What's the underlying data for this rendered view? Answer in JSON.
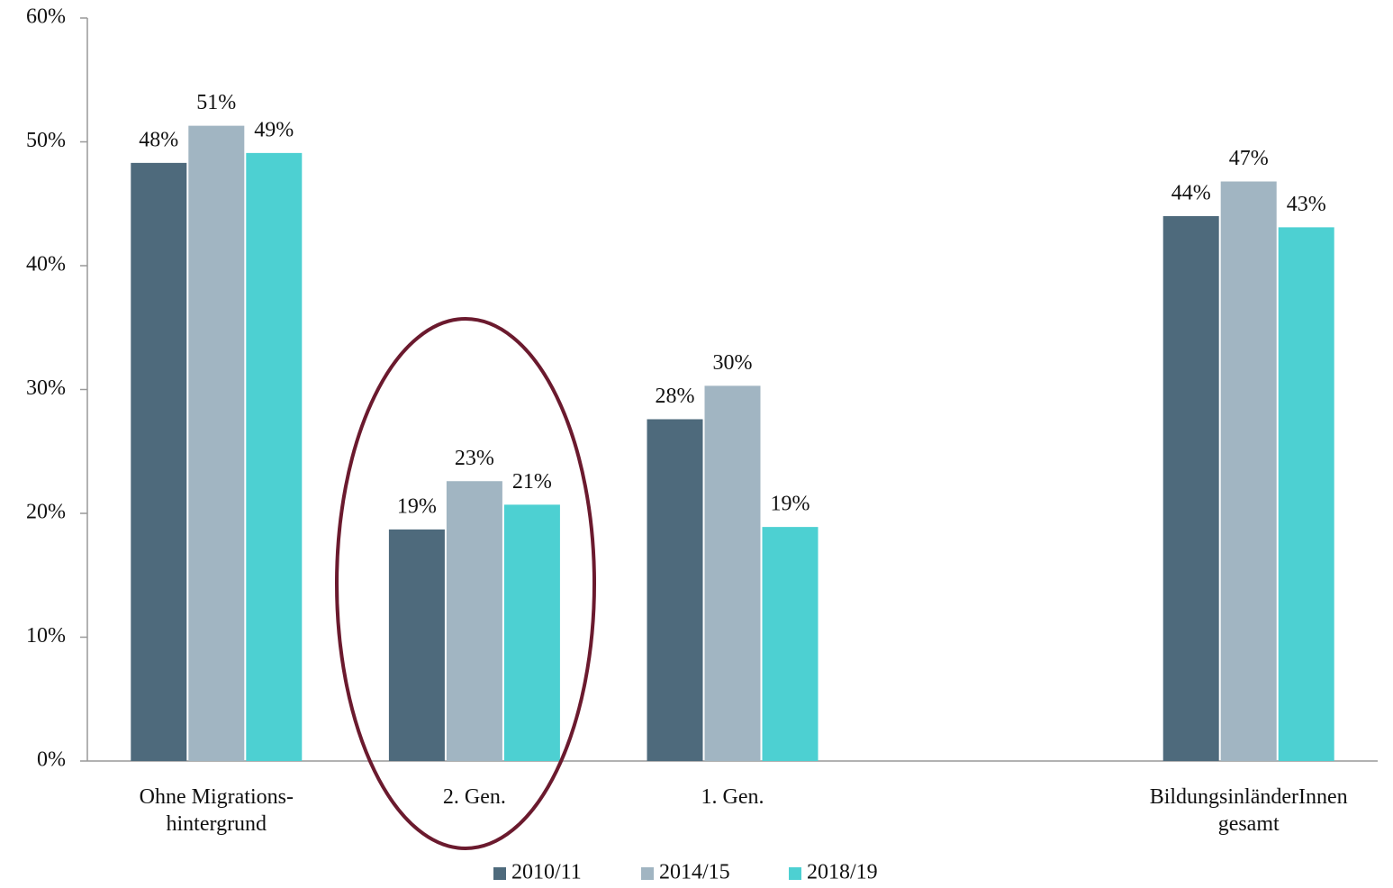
{
  "chart_data": {
    "type": "bar",
    "categories": [
      "Ohne Migrations-\nhintergrund",
      "2. Gen.",
      "1. Gen.",
      null,
      "BildungsinländerInnen\ngesamt"
    ],
    "series": [
      {
        "name": "2010/11",
        "color": "#4e6a7c",
        "values": [
          48.3,
          18.7,
          27.6,
          null,
          44.0
        ],
        "value_labels": [
          "48%",
          "19%",
          "28%",
          null,
          "44%"
        ]
      },
      {
        "name": "2014/15",
        "color": "#a1b5c2",
        "values": [
          51.3,
          22.6,
          30.3,
          null,
          46.8
        ],
        "value_labels": [
          "51%",
          "23%",
          "30%",
          null,
          "47%"
        ]
      },
      {
        "name": "2018/19",
        "color": "#4dd0d2",
        "values": [
          49.1,
          20.7,
          18.9,
          null,
          43.1
        ],
        "value_labels": [
          "49%",
          "21%",
          "19%",
          null,
          "43%"
        ]
      }
    ],
    "ylim": [
      0,
      60
    ],
    "yticks": [
      {
        "value": 0,
        "label": "0%"
      },
      {
        "value": 10,
        "label": "10%"
      },
      {
        "value": 20,
        "label": "20%"
      },
      {
        "value": 30,
        "label": "30%"
      },
      {
        "value": 40,
        "label": "40%"
      },
      {
        "value": 50,
        "label": "50%"
      },
      {
        "value": 60,
        "label": "60%"
      }
    ],
    "legend": "bottom"
  }
}
